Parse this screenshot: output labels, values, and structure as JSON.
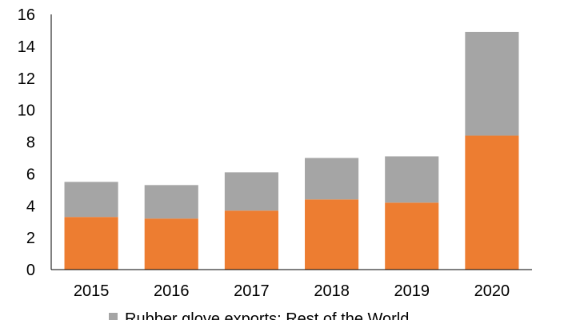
{
  "chart_data": {
    "type": "bar",
    "stacked": true,
    "categories": [
      "2015",
      "2016",
      "2017",
      "2018",
      "2019",
      "2020"
    ],
    "series": [
      {
        "name": "",
        "color": "#ED7D31",
        "values": [
          3.3,
          3.2,
          3.7,
          4.4,
          4.2,
          8.4
        ]
      },
      {
        "name": "Rubber glove exports: Rest of the World",
        "color": "#A5A5A5",
        "values": [
          2.2,
          2.1,
          2.4,
          2.6,
          2.9,
          6.5
        ]
      }
    ],
    "y_ticks": [
      "0",
      "2",
      "4",
      "6",
      "8",
      "10",
      "12",
      "14",
      "16"
    ],
    "ylim": [
      0,
      16
    ],
    "grid": false,
    "legend_position": "bottom"
  }
}
